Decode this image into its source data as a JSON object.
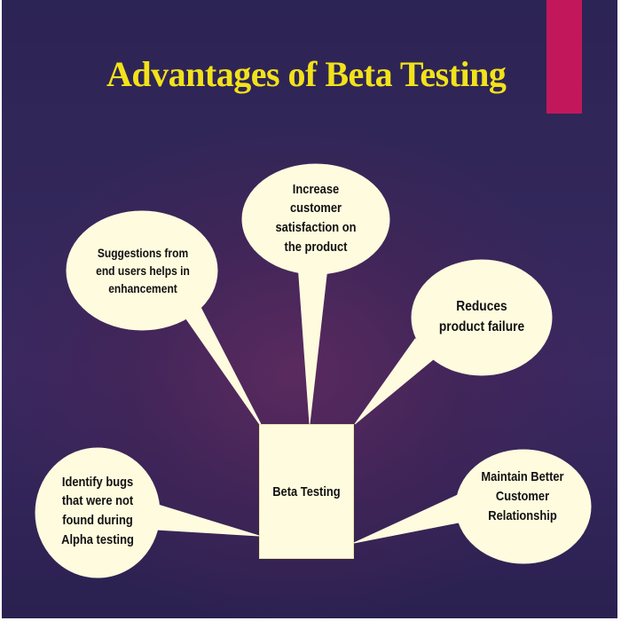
{
  "slide": {
    "title": "Advantages of Beta Testing",
    "title_color": "#f2e21a",
    "accent_color": "#c2185b",
    "bubble_fill": "#fffbdf",
    "center": "Beta Testing",
    "nodes": [
      {
        "key": "suggestions",
        "text": "Suggestions from end users helps in enhancement"
      },
      {
        "key": "satisfaction",
        "text": "Increase customer satisfaction on the product"
      },
      {
        "key": "failure",
        "text": "Reduces product failure"
      },
      {
        "key": "bugs",
        "text": "Identify bugs that were not found during Alpha testing"
      },
      {
        "key": "relationship",
        "text": "Maintain Better Customer Relationship"
      }
    ]
  }
}
